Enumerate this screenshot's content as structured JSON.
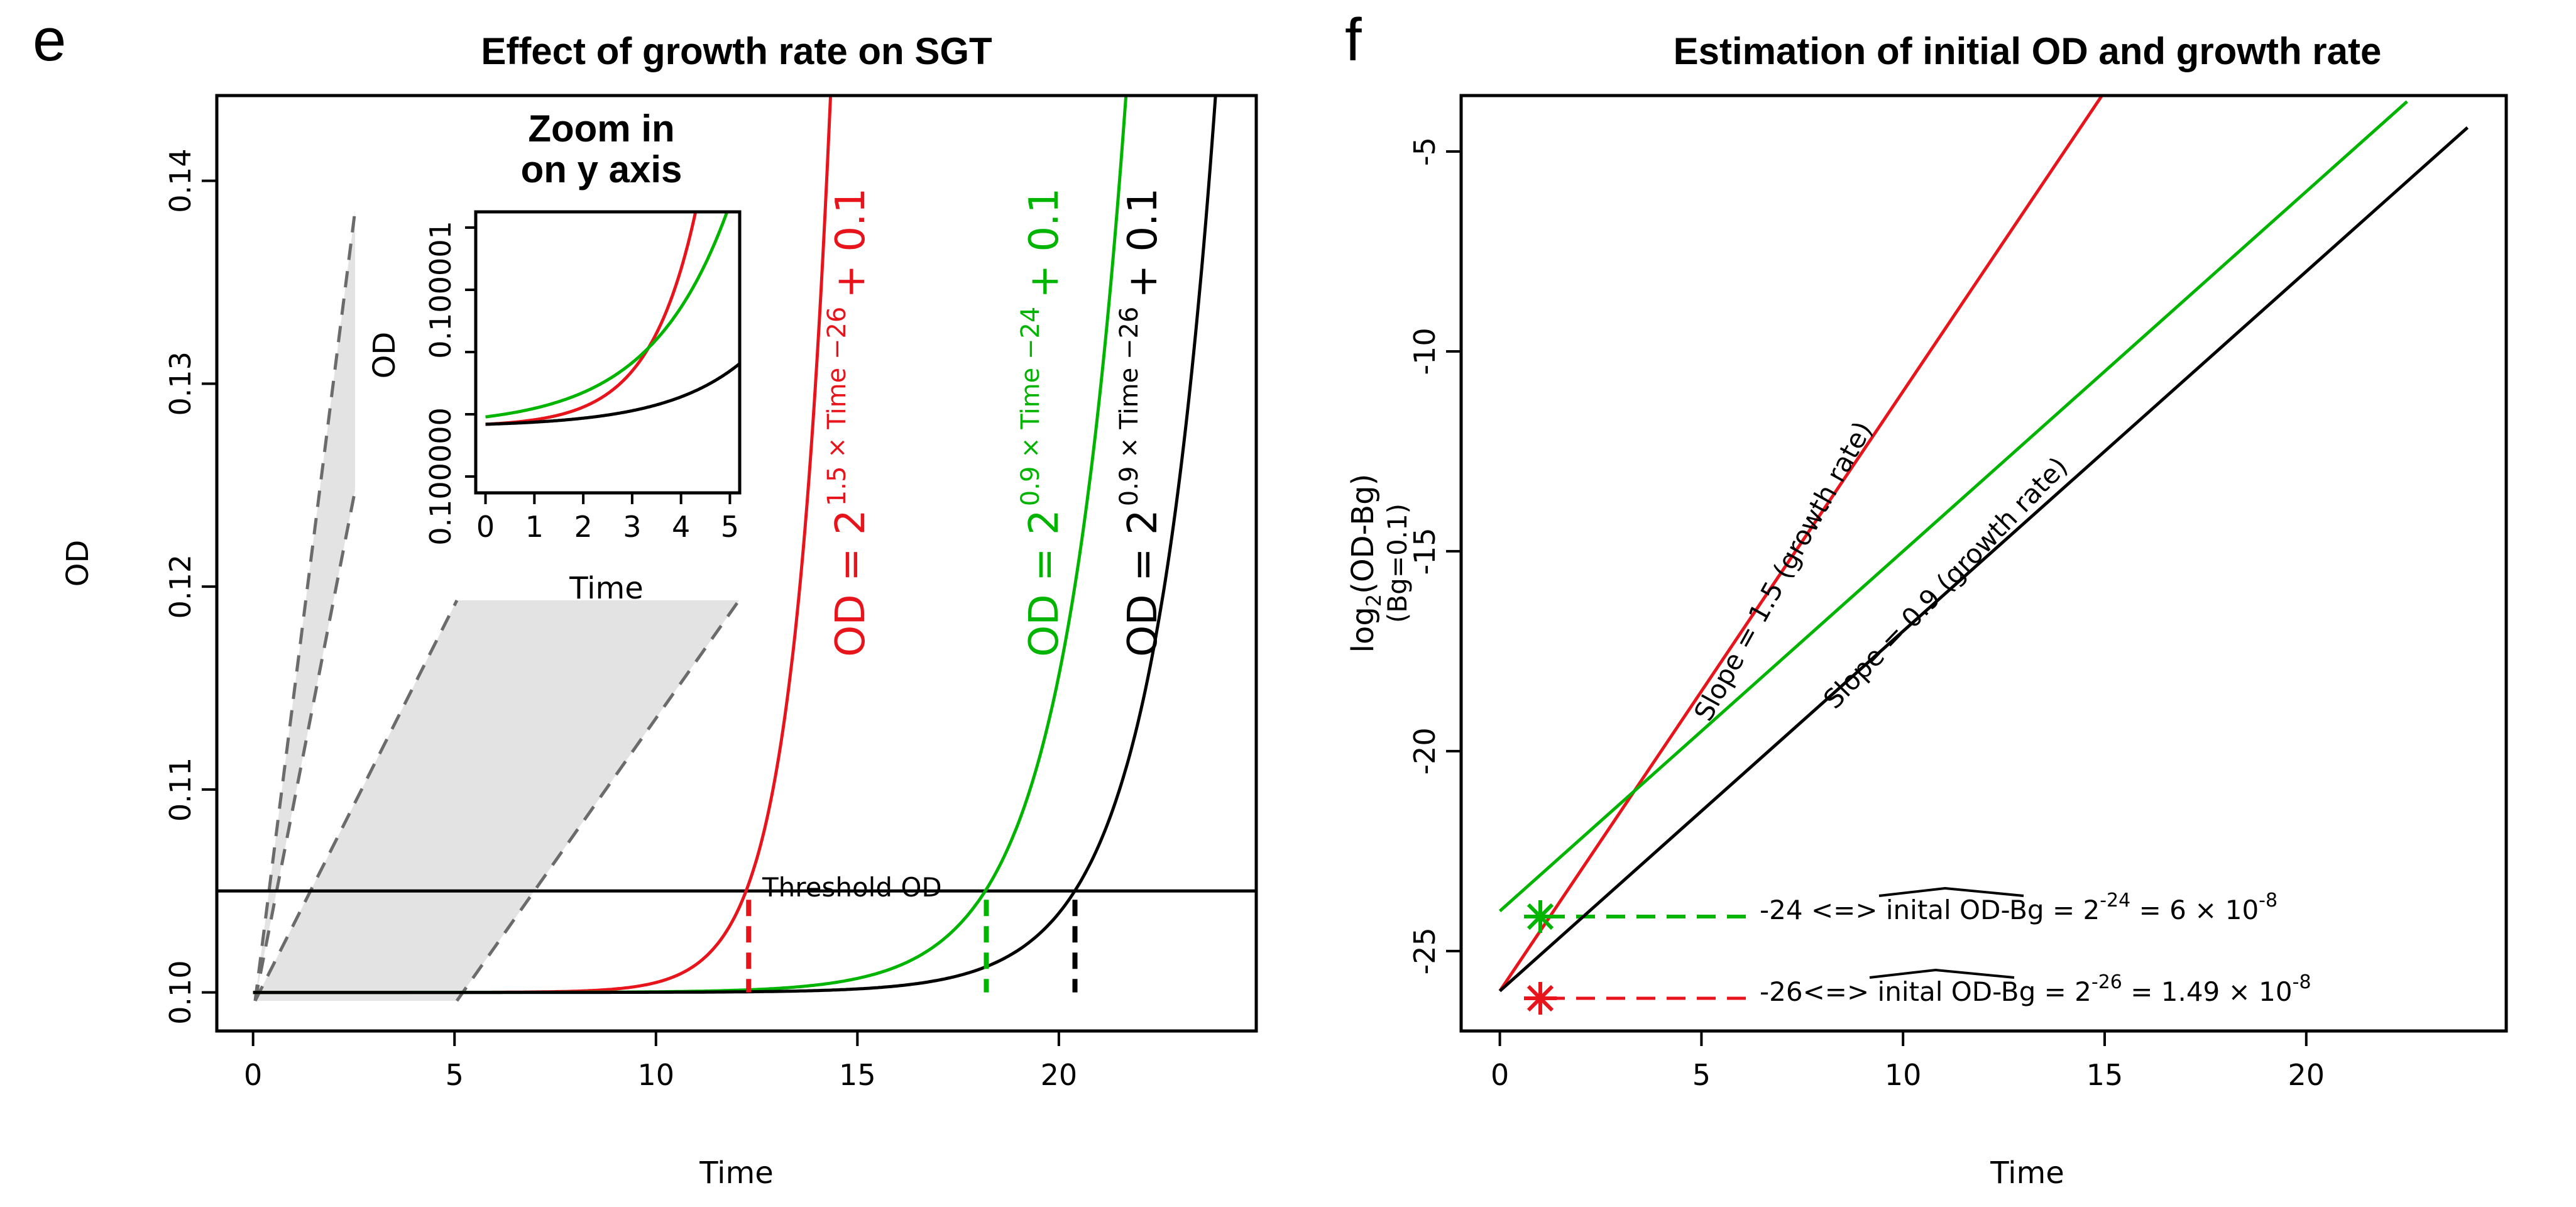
{
  "panel_e": {
    "label": "e",
    "title": "Effect of growth rate on SGT",
    "xlabel": "Time",
    "ylabel": "OD",
    "x_ticks": [
      0,
      5,
      10,
      15,
      20
    ],
    "x_tick_labels": [
      "0",
      "5",
      "10",
      "15",
      "20"
    ],
    "y_ticks": [
      0.1,
      0.11,
      0.12,
      0.13,
      0.14
    ],
    "y_tick_labels": [
      "0.10",
      "0.11",
      "0.12",
      "0.13",
      "0.14"
    ],
    "threshold_label": "Threshold OD",
    "equations": [
      {
        "base": "OD = 2",
        "exp": "1.5 × Time −26",
        "tail": "+ 0.1",
        "color": "#e8141c"
      },
      {
        "base": "OD = 2",
        "exp": "0.9 × Time −24",
        "tail": "+ 0.1",
        "color": "#00b400"
      },
      {
        "base": "OD = 2",
        "exp": "0.9 × Time −26",
        "tail": "+ 0.1",
        "color": "#000000"
      }
    ],
    "inset": {
      "title_line1": "Zoom in",
      "title_line2": "on y axis",
      "xlabel": "Time",
      "ylabel": "OD",
      "x_tick_labels": [
        "0",
        "1",
        "2",
        "3",
        "4",
        "5"
      ],
      "y_tick_labels": [
        "0.100000",
        "0.100001"
      ]
    }
  },
  "panel_f": {
    "label": "f",
    "title": "Estimation of initial OD and growth rate",
    "xlabel": "Time",
    "ylabel_main": "log",
    "ylabel_sub": "2",
    "ylabel_rest": "(OD-Bg)",
    "ylabel_line2": "(Bg=0.1)",
    "x_tick_labels": [
      "0",
      "5",
      "10",
      "15",
      "20"
    ],
    "y_tick_labels": [
      "-5",
      "-10",
      "-15",
      "-20",
      "-25"
    ],
    "slope_red_label": "Slope = 1.5 (growth rate)",
    "slope_black_label": "Slope = 0.9 (growth rate)",
    "annot_green": {
      "prefix": "-24 <=> ",
      "hat": "inital OD-Bg",
      "eq": " = 2",
      "sup": "-24",
      "rest": " = 6 × 10",
      "sup2": "-8"
    },
    "annot_red": {
      "prefix": "-26<=> ",
      "hat": "inital OD-Bg",
      "eq": " = 2",
      "sup": "-26",
      "rest": " = 1.49 × 10",
      "sup2": "-8"
    }
  },
  "chart_data": [
    {
      "type": "line",
      "title": "Effect of growth rate on SGT",
      "xlabel": "Time",
      "ylabel": "OD",
      "xlim": [
        -0.9,
        24.9
      ],
      "ylim": [
        0.0981,
        0.1442
      ],
      "threshold_od": 0.105,
      "series": [
        {
          "name": "OD = 2^(1.5 × Time − 26) + 0.1",
          "color": "#e8141c",
          "rate": 1.5,
          "intercept": -26,
          "bg": 0.1,
          "t_max": 14.5,
          "threshold_time": 12.3
        },
        {
          "name": "OD = 2^(0.9 × Time − 24) + 0.1",
          "color": "#00b400",
          "rate": 0.9,
          "intercept": -24,
          "bg": 0.1,
          "t_max": 21.9,
          "threshold_time": 18.2
        },
        {
          "name": "OD = 2^(0.9 × Time − 26) + 0.1",
          "color": "#000000",
          "rate": 0.9,
          "intercept": -26,
          "bg": 0.1,
          "t_max": 24.0,
          "threshold_time": 20.4
        }
      ]
    },
    {
      "type": "line",
      "title": "Zoom in on y axis",
      "xlabel": "Time",
      "ylabel": "OD",
      "xlim": [
        -0.2,
        5.2
      ],
      "ylim": [
        0.0999996,
        0.1000013
      ]
    },
    {
      "type": "line",
      "title": "Estimation of initial OD and growth rate",
      "xlabel": "Time",
      "ylabel": "log2(OD-Bg) (Bg=0.1)",
      "xlim": [
        -0.96,
        24.96
      ],
      "ylim": [
        -27.0,
        -3.6
      ],
      "series": [
        {
          "name": "Slope = 1.5 (growth rate)",
          "color": "#e8141c",
          "slope": 1.5,
          "intercept": -26,
          "x_range": [
            0,
            15
          ]
        },
        {
          "name": "green",
          "color": "#00b400",
          "slope": 0.9,
          "intercept": -24,
          "x_range": [
            0,
            22.5
          ]
        },
        {
          "name": "Slope = 0.9 (growth rate)",
          "color": "#000000",
          "slope": 0.9,
          "intercept": -26,
          "x_range": [
            0,
            24
          ]
        }
      ],
      "intercepts": [
        {
          "value": -24,
          "color": "#00b400",
          "initial_od_minus_bg": "2^-24 = 6 × 10^-8"
        },
        {
          "value": -26,
          "color": "#e8141c",
          "initial_od_minus_bg": "2^-26 = 1.49 × 10^-8"
        }
      ]
    }
  ]
}
